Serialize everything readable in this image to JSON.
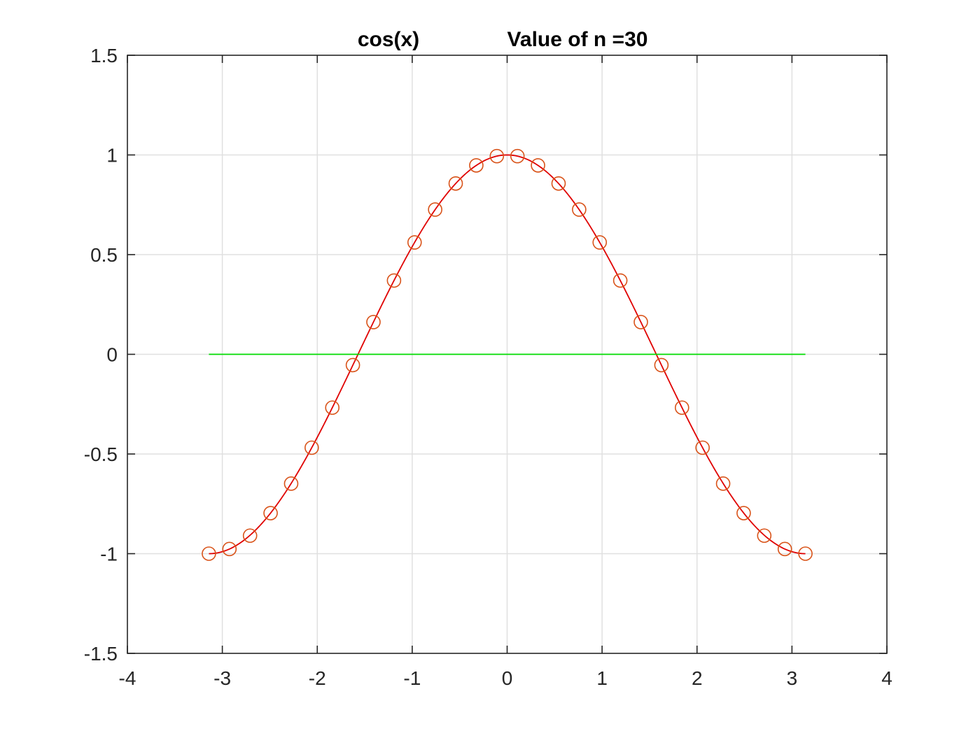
{
  "chart_data": {
    "type": "line",
    "title_left": "cos(x)",
    "title_right": "Value of n =30",
    "xlabel": "",
    "ylabel": "",
    "xlim": [
      -4,
      4
    ],
    "ylim": [
      -1.5,
      1.5
    ],
    "grid": true,
    "xticks": [
      -4,
      -3,
      -2,
      -1,
      0,
      1,
      2,
      3,
      4
    ],
    "yticks": [
      -1.5,
      -1,
      -0.5,
      0,
      0.5,
      1,
      1.5
    ],
    "xtick_labels": [
      "-4",
      "-3",
      "-2",
      "-1",
      "0",
      "1",
      "2",
      "3",
      "4"
    ],
    "ytick_labels": [
      "-1.5",
      "-1",
      "-0.5",
      "0",
      "0.5",
      "1",
      "1.5"
    ],
    "series": [
      {
        "kind": "line",
        "function": "cos",
        "x_range": [
          -3.14159,
          3.14159
        ],
        "color": "#e00000"
      },
      {
        "kind": "markers",
        "marker": "circle",
        "color": "#d95319",
        "x": [
          -3.1416,
          -2.9249,
          -2.7083,
          -2.4916,
          -2.275,
          -2.0583,
          -1.8417,
          -1.625,
          -1.4083,
          -1.1917,
          -0.975,
          -0.7584,
          -0.5417,
          -0.325,
          -0.1083,
          0.1083,
          0.325,
          0.5417,
          0.7584,
          0.975,
          1.1917,
          1.4083,
          1.625,
          1.8417,
          2.0583,
          2.275,
          2.4916,
          2.7083,
          2.9249,
          3.1416
        ],
        "y": [
          -1.0,
          -0.9767,
          -0.9096,
          -0.7966,
          -0.6486,
          -0.4684,
          -0.2675,
          -0.0541,
          0.1617,
          0.3701,
          0.5612,
          0.726,
          0.8569,
          0.9477,
          0.9941,
          0.9941,
          0.9477,
          0.8569,
          0.726,
          0.5612,
          0.3701,
          0.1617,
          -0.0541,
          -0.2675,
          -0.4684,
          -0.6486,
          -0.7966,
          -0.9096,
          -0.9767,
          -1.0
        ]
      },
      {
        "kind": "line",
        "x": [
          -3.1416,
          3.1416
        ],
        "y": [
          0,
          0
        ],
        "color": "#00dd00"
      }
    ]
  }
}
